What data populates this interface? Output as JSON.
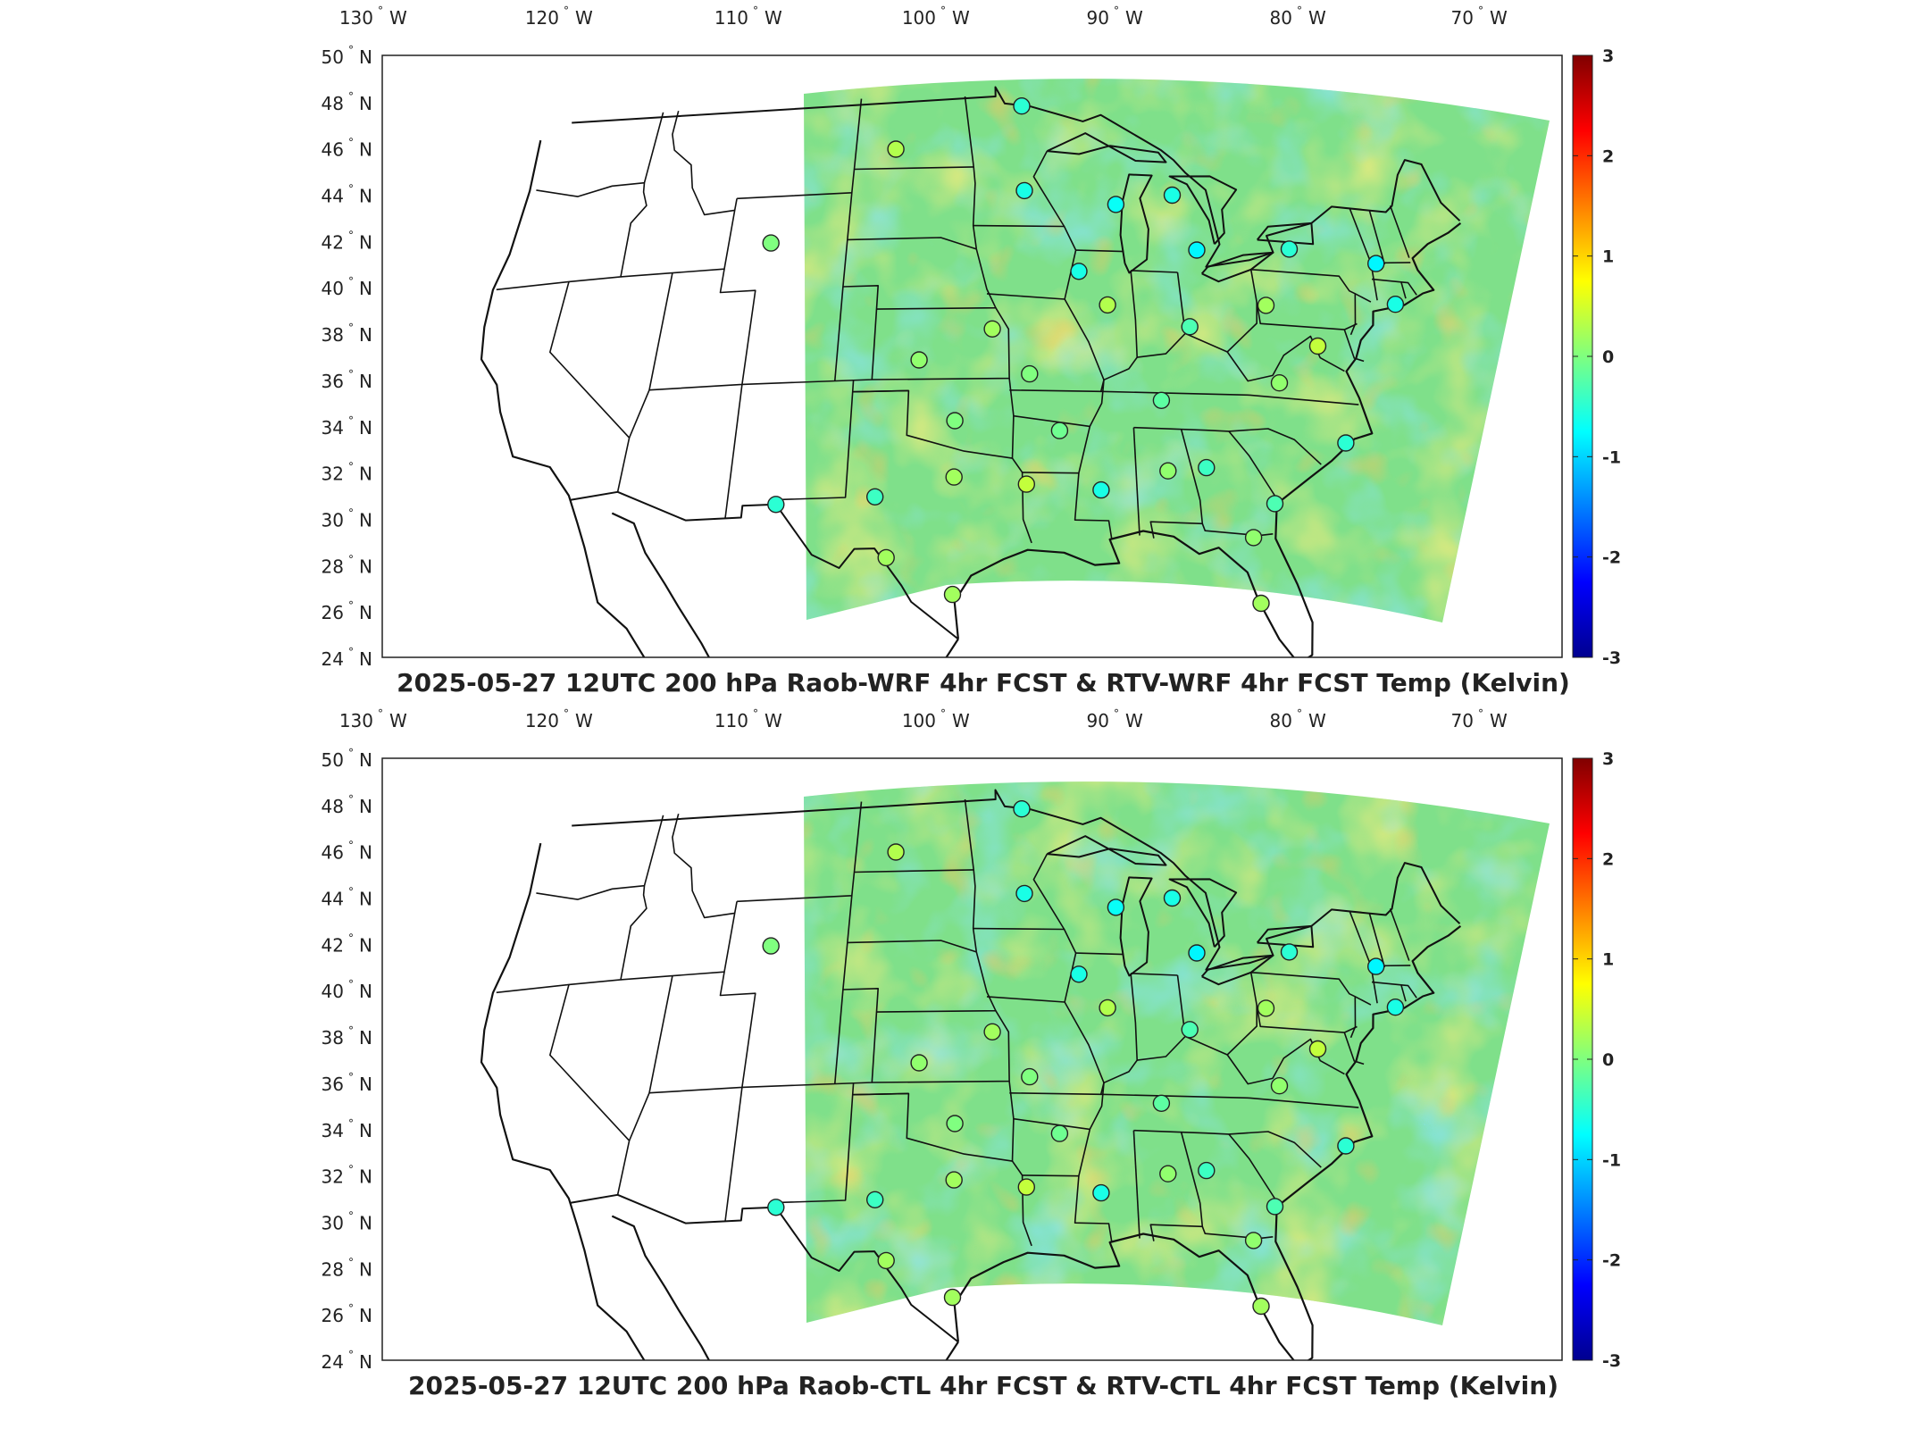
{
  "panels": [
    {
      "id": "top",
      "title": "2025-05-27 12UTC 200 hPa Raob-WRF 4hr FCST & RTV-WRF 4hr FCST Temp (Kelvin)"
    },
    {
      "id": "bottom",
      "title": "2025-05-27 12UTC 200 hPa Raob-CTL 4hr FCST & RTV-CTL 4hr FCST Temp (Kelvin)"
    }
  ],
  "lon_ticks": [
    {
      "value": -130,
      "label": "130",
      "suffix": "W"
    },
    {
      "value": -120,
      "label": "120",
      "suffix": "W"
    },
    {
      "value": -110,
      "label": "110",
      "suffix": "W"
    },
    {
      "value": -100,
      "label": "100",
      "suffix": "W"
    },
    {
      "value": -90,
      "label": "90",
      "suffix": "W"
    },
    {
      "value": -80,
      "label": "80",
      "suffix": "W"
    },
    {
      "value": -70,
      "label": "70",
      "suffix": "W"
    }
  ],
  "lat_ticks": [
    {
      "value": 50,
      "label": "50",
      "suffix": "N"
    },
    {
      "value": 48,
      "label": "48",
      "suffix": "N"
    },
    {
      "value": 46,
      "label": "46",
      "suffix": "N"
    },
    {
      "value": 44,
      "label": "44",
      "suffix": "N"
    },
    {
      "value": 42,
      "label": "42",
      "suffix": "N"
    },
    {
      "value": 40,
      "label": "40",
      "suffix": "N"
    },
    {
      "value": 38,
      "label": "38",
      "suffix": "N"
    },
    {
      "value": 36,
      "label": "36",
      "suffix": "N"
    },
    {
      "value": 34,
      "label": "34",
      "suffix": "N"
    },
    {
      "value": 32,
      "label": "32",
      "suffix": "N"
    },
    {
      "value": 30,
      "label": "30",
      "suffix": "N"
    },
    {
      "value": 28,
      "label": "28",
      "suffix": "N"
    },
    {
      "value": 26,
      "label": "26",
      "suffix": "N"
    },
    {
      "value": 24,
      "label": "24",
      "suffix": "N"
    }
  ],
  "colorbar": {
    "min": -3,
    "max": 3,
    "ticks": [
      "3",
      "2",
      "1",
      "0",
      "-1",
      "-2",
      "-3"
    ],
    "colormap": "jet"
  },
  "colors": {
    "field_mid": "#7fe08a",
    "field_warm": "#f4e04a",
    "field_cool": "#55d6e0"
  },
  "stations": [
    {
      "lon": -101.5,
      "lat": 46.8,
      "value": 0.3
    },
    {
      "lon": -93.5,
      "lat": 48.6,
      "value": -0.5
    },
    {
      "lon": -93.5,
      "lat": 45.0,
      "value": -0.6
    },
    {
      "lon": -88.0,
      "lat": 44.5,
      "value": -0.7
    },
    {
      "lon": -84.5,
      "lat": 45.0,
      "value": -0.6
    },
    {
      "lon": -83.5,
      "lat": 42.7,
      "value": -0.8
    },
    {
      "lon": -90.5,
      "lat": 41.6,
      "value": -0.6
    },
    {
      "lon": -89.0,
      "lat": 40.2,
      "value": 0.3
    },
    {
      "lon": -84.5,
      "lat": 39.4,
      "value": -0.3
    },
    {
      "lon": -80.0,
      "lat": 40.5,
      "value": 0.2
    },
    {
      "lon": -78.0,
      "lat": 43.0,
      "value": -0.5
    },
    {
      "lon": -73.0,
      "lat": 42.7,
      "value": -0.8
    },
    {
      "lon": -72.5,
      "lat": 41.0,
      "value": -0.6
    },
    {
      "lon": -77.5,
      "lat": 38.9,
      "value": 0.4
    },
    {
      "lon": -80.0,
      "lat": 37.2,
      "value": 0.1
    },
    {
      "lon": -86.5,
      "lat": 36.2,
      "value": -0.2
    },
    {
      "lon": -95.5,
      "lat": 39.1,
      "value": 0.2
    },
    {
      "lon": -99.5,
      "lat": 37.8,
      "value": 0.1
    },
    {
      "lon": -93.5,
      "lat": 37.2,
      "value": 0.0
    },
    {
      "lon": -92.0,
      "lat": 34.8,
      "value": -0.1
    },
    {
      "lon": -97.5,
      "lat": 35.2,
      "value": 0.0
    },
    {
      "lon": -97.5,
      "lat": 32.8,
      "value": 0.2
    },
    {
      "lon": -101.5,
      "lat": 32.0,
      "value": -0.4
    },
    {
      "lon": -106.5,
      "lat": 31.8,
      "value": -0.5
    },
    {
      "lon": -108.5,
      "lat": 43.0,
      "value": 0.0
    },
    {
      "lon": -93.8,
      "lat": 32.5,
      "value": 0.4
    },
    {
      "lon": -90.0,
      "lat": 32.3,
      "value": -0.6
    },
    {
      "lon": -86.5,
      "lat": 33.2,
      "value": 0.1
    },
    {
      "lon": -84.5,
      "lat": 33.4,
      "value": -0.4
    },
    {
      "lon": -81.2,
      "lat": 32.0,
      "value": -0.3
    },
    {
      "lon": -77.0,
      "lat": 34.8,
      "value": -0.5
    },
    {
      "lon": -82.5,
      "lat": 30.5,
      "value": 0.1
    },
    {
      "lon": -82.5,
      "lat": 27.7,
      "value": 0.2
    },
    {
      "lon": -97.5,
      "lat": 27.8,
      "value": 0.2
    },
    {
      "lon": -100.8,
      "lat": 29.4,
      "value": 0.2
    }
  ]
}
